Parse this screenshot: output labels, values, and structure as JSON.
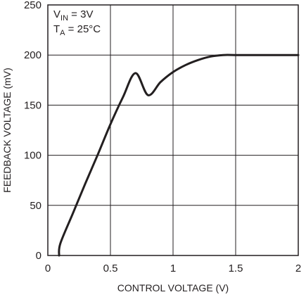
{
  "chart_data": {
    "type": "line",
    "xlabel": "CONTROL VOLTAGE (V)",
    "ylabel": "FEEDBACK VOLTAGE (mV)",
    "xlim": [
      0,
      2
    ],
    "ylim": [
      0,
      250
    ],
    "x_ticks": [
      0,
      0.5,
      1,
      1.5,
      2
    ],
    "x_tick_labels": [
      "0",
      "0.5",
      "1",
      "1.5",
      "2"
    ],
    "y_ticks": [
      0,
      50,
      100,
      150,
      200,
      250
    ],
    "y_tick_labels": [
      "0",
      "50",
      "100",
      "150",
      "200",
      "250"
    ],
    "grid": true,
    "conditions": {
      "vin": {
        "main": "V",
        "sub": "IN",
        "rest": " = 3V"
      },
      "ta": {
        "main": "T",
        "sub": "A",
        "rest": " = 25°C"
      }
    },
    "series": [
      {
        "color": "#231f20",
        "x": [
          0.09,
          0.1,
          0.2,
          0.3,
          0.4,
          0.5,
          0.6,
          0.7,
          0.8,
          0.9,
          1.0,
          1.1,
          1.2,
          1.3,
          1.4,
          1.5,
          1.6,
          1.8,
          2.0
        ],
        "y": [
          0,
          12,
          42,
          72,
          101,
          131,
          158,
          182,
          160,
          173,
          183,
          190,
          195,
          198.5,
          200,
          200,
          200,
          200,
          200
        ]
      }
    ]
  }
}
